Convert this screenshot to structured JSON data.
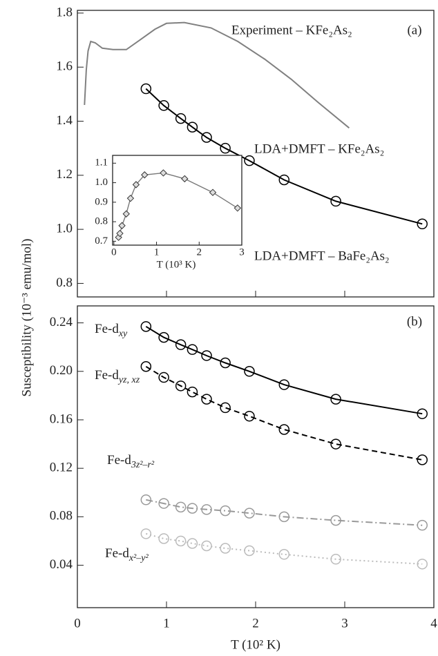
{
  "chart_data": [
    {
      "type": "line",
      "xlim": [
        0,
        4
      ],
      "xticks": [
        0,
        1,
        2,
        3,
        4
      ],
      "xtick_labels": false,
      "ylim": [
        0.75,
        1.81
      ],
      "yticks": [
        0.8,
        {
          "value": 1,
          "label": "1.0"
        },
        1.2,
        1.4,
        1.6,
        1.8
      ],
      "annotations": [
        "Experiment – KFe₂As₂",
        "(a)",
        "LDA+DMFT – KFe₂As₂",
        "LDA+DMFT – BaFe₂As₂"
      ],
      "series": [
        {
          "color": "#808080",
          "dash": "solid",
          "marker": null,
          "x": [
            0.08,
            0.1,
            0.12,
            0.15,
            0.2,
            0.28,
            0.4,
            0.55,
            0.7,
            0.87,
            1.0,
            1.2,
            1.5,
            1.8,
            2.1,
            2.4,
            2.7,
            3.05
          ],
          "values": [
            1.46,
            1.59,
            1.66,
            1.695,
            1.69,
            1.67,
            1.665,
            1.665,
            1.7,
            1.74,
            1.762,
            1.765,
            1.745,
            1.695,
            1.63,
            1.555,
            1.47,
            1.375
          ]
        },
        {
          "color": "#000000",
          "dash": "solid",
          "marker": "circle",
          "x": [
            0.77,
            0.97,
            1.16,
            1.29,
            1.45,
            1.66,
            1.93,
            2.32,
            2.9,
            3.87
          ],
          "values": [
            1.52,
            1.458,
            1.41,
            1.378,
            1.34,
            1.3,
            1.254,
            1.183,
            1.104,
            1.02
          ]
        }
      ]
    },
    {
      "type": "line",
      "xlim": [
        -0.03,
        3.0
      ],
      "xticks": [
        0,
        1,
        2,
        3
      ],
      "xtick_labels": true,
      "xlabel": "T (10³ K)",
      "ylim": [
        0.68,
        1.14
      ],
      "yticks": [
        0.7,
        0.8,
        0.9,
        {
          "value": 1,
          "label": "1.0"
        },
        1.1
      ],
      "series": [
        {
          "color": "#777777",
          "dash": "solid",
          "marker": "diamond",
          "x": [
            0.11,
            0.14,
            0.19,
            0.29,
            0.39,
            0.52,
            0.72,
            1.16,
            1.66,
            2.32,
            2.9
          ],
          "values": [
            0.72,
            0.74,
            0.78,
            0.84,
            0.92,
            0.99,
            1.04,
            1.05,
            1.02,
            0.95,
            0.87
          ]
        }
      ]
    },
    {
      "type": "line",
      "xlim": [
        0,
        4
      ],
      "xticks": [
        0,
        1,
        2,
        3,
        4
      ],
      "xtick_labels": true,
      "xlabel": "T (10² K)",
      "ylabel": "Susceptibility (10⁻³ emu/mol)",
      "ylim": [
        0.005,
        0.254
      ],
      "yticks": [
        0.04,
        0.08,
        0.12,
        0.16,
        {
          "value": 0.2,
          "label": "0.20"
        },
        0.24
      ],
      "annotations": [
        "(b)"
      ],
      "x": [
        0.77,
        0.97,
        1.16,
        1.29,
        1.45,
        1.66,
        1.93,
        2.32,
        2.9,
        3.87
      ],
      "series": [
        {
          "name": "Fe-d",
          "name_sub": "xy",
          "color": "#000000",
          "dash": "solid",
          "marker": "circle",
          "values": [
            0.237,
            0.228,
            0.222,
            0.218,
            0.213,
            0.207,
            0.2,
            0.189,
            0.177,
            0.165
          ]
        },
        {
          "name": "Fe-d",
          "name_sub": "yz, xz",
          "color": "#000000",
          "dash": "dashed",
          "marker": "circle",
          "values": [
            0.204,
            0.195,
            0.188,
            0.183,
            0.177,
            0.17,
            0.163,
            0.152,
            0.14,
            0.127
          ]
        },
        {
          "name": "Fe-d",
          "name_sub": "3z²–r²",
          "color": "#999999",
          "dash": "dashdot",
          "marker": "circle",
          "values": [
            0.094,
            0.091,
            0.088,
            0.087,
            0.086,
            0.085,
            0.083,
            0.08,
            0.077,
            0.073
          ]
        },
        {
          "name": "Fe-d",
          "name_sub": "x²–y²",
          "color": "#bbbbbb",
          "dash": "dotted",
          "marker": "circle",
          "values": [
            0.066,
            0.062,
            0.06,
            0.058,
            0.056,
            0.054,
            0.052,
            0.049,
            0.045,
            0.041
          ]
        }
      ]
    }
  ]
}
